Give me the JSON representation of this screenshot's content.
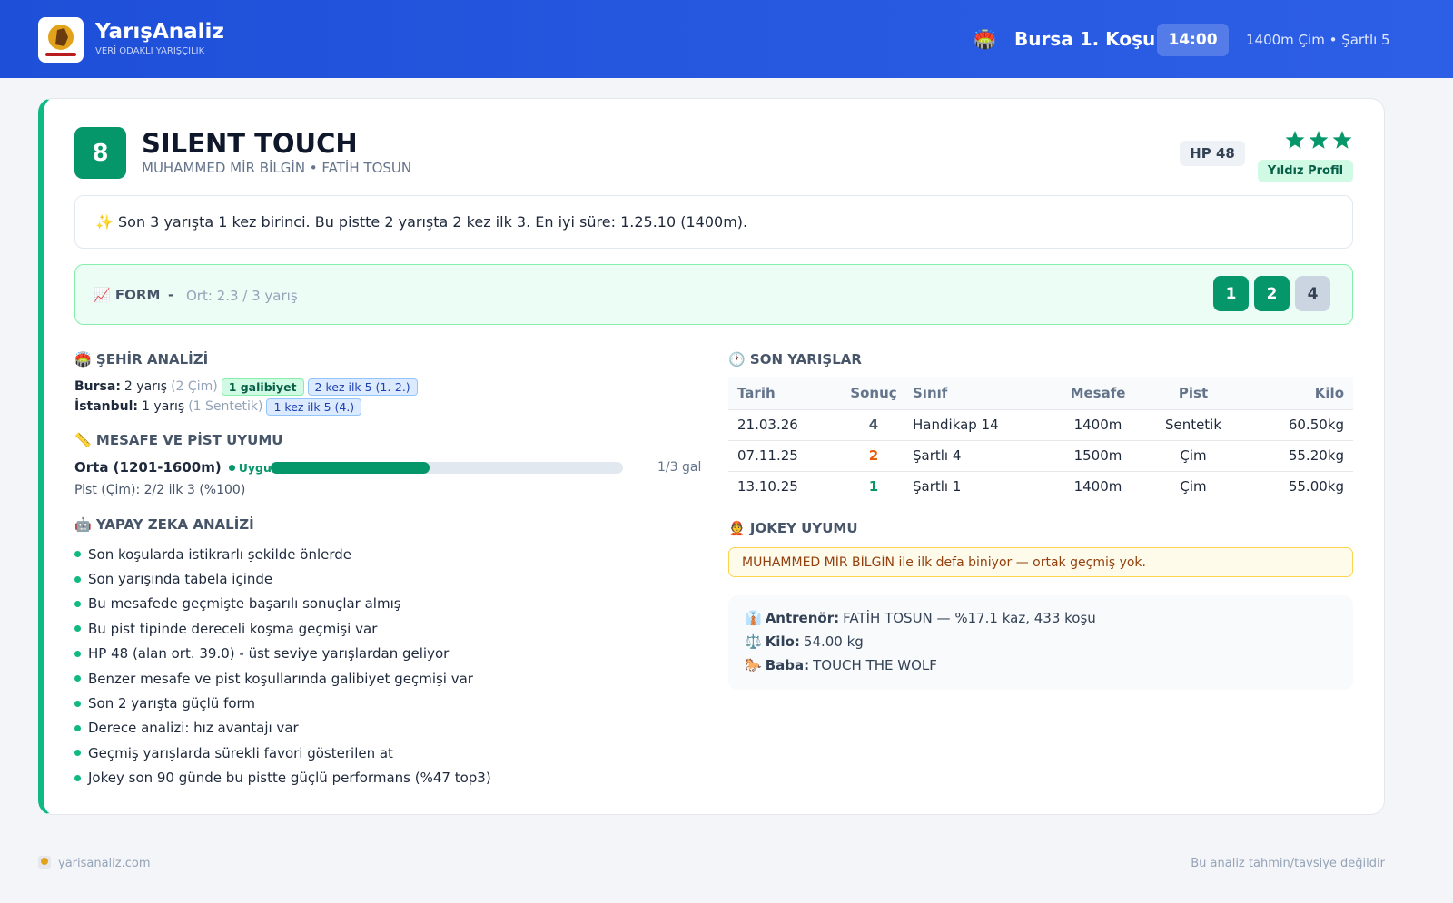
{
  "header": {
    "brand": "YarışAnaliz",
    "tagline": "VERİ ODAKLI YARIŞÇILIK",
    "race_icon": "🏟️",
    "race_title": "Bursa 1. Koşu",
    "time": "14:00",
    "race_info": "1400m Çim • Şartlı 5"
  },
  "horse": {
    "number": 8,
    "name": "SILENT TOUCH",
    "subtitle": "MUHAMMED MİR BİLGİN • FATİH TOSUN",
    "hp": "HP 48",
    "badge": "Yıldız Profil"
  },
  "summary": "✨ Son 3 yarışta 1 kez birinci. Bu pistte 2 yarışta 2 kez ilk 3. En iyi süre: 1.25.10 (1400m).",
  "form": {
    "label": "📈 FORM",
    "separator": "-",
    "average": "Ort: 2.3 / 3 yarış",
    "results": [
      {
        "value": 1,
        "color": "#059669"
      },
      {
        "value": 2,
        "color": "#059669"
      },
      {
        "value": 4,
        "color": "#cbd5e1"
      }
    ]
  },
  "city": {
    "title": "🏟️ ŞEHİR ANALİZİ",
    "rows": [
      {
        "city": "Bursa:",
        "races": "2 yarış",
        "detail": "(2 Çim)",
        "tags": [
          "1 galibiyet",
          "2 kez ilk 5 (1.-2.)"
        ]
      },
      {
        "city": "İstanbul:",
        "races": "1 yarış",
        "detail": "(1 Sentetik)",
        "tags": [
          "1 kez ilk 5 (4.)"
        ]
      }
    ]
  },
  "distance": {
    "title": "📏 MESAFE VE PİST UYUMU",
    "category": "Orta (1201-1600m)",
    "status": "Uygun",
    "progress": 45,
    "wins": "1/3 gal",
    "track": "Pist (Çim): 2/2 ilk 3 (%100)"
  },
  "ai": {
    "title": "🤖 YAPAY ZEKA ANALİZİ",
    "items": [
      "Son koşularda istikrarlı şekilde önlerde",
      "Son yarışında tabela içinde",
      "Bu mesafede geçmişte başarılı sonuçlar almış",
      "Bu pist tipinde dereceli koşma geçmişi var",
      "HP 48 (alan ort. 39.0) - üst seviye yarışlardan geliyor",
      "Benzer mesafe ve pist koşullarında galibiyet geçmişi var",
      "Son 2 yarışta güçlü form",
      "Derece analizi: hız avantajı var",
      "Geçmiş yarışlarda sürekli favori gösterilen at",
      "Jokey son 90 günde bu pistte güçlü performans (%47 top3)"
    ]
  },
  "races": {
    "title": "🕐 SON YARIŞLAR",
    "columns": [
      "Tarih",
      "Sonuç",
      "Sınıf",
      "Mesafe",
      "Pist",
      "Kilo"
    ],
    "rows": [
      [
        "21.03.26",
        4,
        "Handikap 14",
        "1400m",
        "Sentetik",
        "60.50kg"
      ],
      [
        "07.11.25",
        2,
        "Şartlı 4",
        "1500m",
        "Çim",
        "55.20kg"
      ],
      [
        "13.10.25",
        1,
        "Şartlı 1",
        "1400m",
        "Çim",
        "55.00kg"
      ]
    ],
    "result_colors": [
      "#475569",
      "#ea580c",
      "#059669"
    ]
  },
  "jockey": {
    "title": "👲 JOKEY UYUMU",
    "note": "MUHAMMED MİR BİLGİN ile ilk defa biniyor — ortak geçmiş yok."
  },
  "info": {
    "rows": [
      {
        "icon": "👔",
        "label": "Antrenör:",
        "value": "FATİH TOSUN — %17.1 kaz, 433 koşu"
      },
      {
        "icon": "⚖️",
        "label": "Kilo:",
        "value": "54.00 kg"
      },
      {
        "icon": "🐎",
        "label": "Baba:",
        "value": "TOUCH THE WOLF"
      }
    ]
  },
  "footer": {
    "site": "yarisanaliz.com",
    "disclaimer": "Bu analiz tahmin/tavsiye değildir"
  }
}
